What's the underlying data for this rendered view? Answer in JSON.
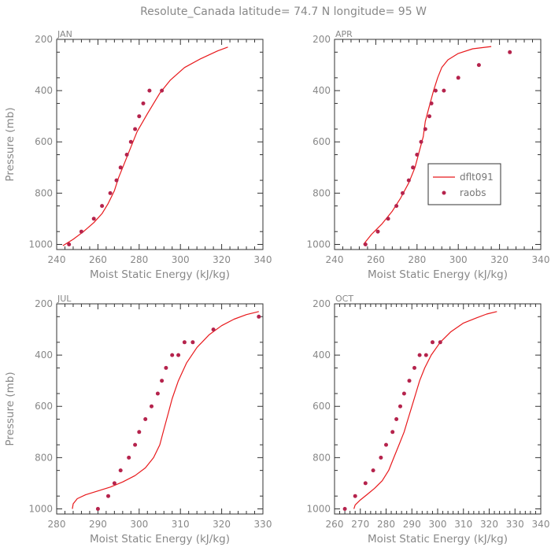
{
  "figure": {
    "title": "Resolute_Canada  latitude= 74.7 N longitude= 95 W",
    "colors": {
      "model": "#e8191c",
      "obs": "#b5234c",
      "axis": "#333333",
      "text": "#888888"
    },
    "legend": {
      "placement": "inside APR panel, lower right",
      "model": "dflt091",
      "obs": "raobs"
    }
  },
  "chart_data": [
    {
      "panel": "JAN",
      "type": "line",
      "xlabel": "Moist Static Energy (kJ/kg)",
      "ylabel": "Pressure (mb)",
      "xlim": [
        240,
        340
      ],
      "ylim": [
        1020,
        200
      ],
      "xticks": [
        240,
        260,
        280,
        300,
        320,
        340
      ],
      "yticks": [
        200,
        400,
        600,
        800,
        1000
      ],
      "series": [
        {
          "name": "dflt091",
          "kind": "line",
          "x": [
            243,
            248,
            253,
            258,
            262,
            265,
            268,
            270,
            273,
            276,
            279,
            284,
            290,
            295,
            302,
            310,
            318,
            323
          ],
          "y": [
            1005,
            980,
            950,
            915,
            880,
            840,
            790,
            740,
            680,
            620,
            560,
            490,
            410,
            360,
            310,
            275,
            245,
            230
          ]
        },
        {
          "name": "raobs",
          "kind": "scatter",
          "x": [
            246,
            252,
            258,
            262,
            266,
            269,
            271,
            274,
            276,
            278,
            280,
            282,
            285,
            291
          ],
          "y": [
            1000,
            950,
            900,
            850,
            800,
            750,
            700,
            650,
            600,
            550,
            500,
            450,
            400,
            400
          ]
        }
      ]
    },
    {
      "panel": "APR",
      "type": "line",
      "xlabel": "Moist Static Energy (kJ/kg)",
      "ylabel": "",
      "xlim": [
        240,
        340
      ],
      "ylim": [
        1020,
        200
      ],
      "xticks": [
        240,
        260,
        280,
        300,
        320,
        340
      ],
      "yticks": [
        200,
        400,
        600,
        800,
        1000
      ],
      "series": [
        {
          "name": "dflt091",
          "kind": "line",
          "x": [
            254,
            258,
            263,
            268,
            272,
            276,
            279,
            281,
            283,
            284,
            286,
            288,
            290,
            292,
            295,
            300,
            307,
            316
          ],
          "y": [
            1000,
            960,
            920,
            870,
            820,
            760,
            700,
            640,
            580,
            520,
            460,
            400,
            350,
            310,
            280,
            255,
            237,
            228
          ]
        },
        {
          "name": "raobs",
          "kind": "scatter",
          "x": [
            255,
            261,
            266,
            270,
            273,
            276,
            278,
            280,
            282,
            284,
            286,
            287,
            289,
            293,
            300,
            310,
            325
          ],
          "y": [
            1000,
            950,
            900,
            850,
            800,
            750,
            700,
            650,
            600,
            550,
            500,
            450,
            400,
            400,
            350,
            300,
            250
          ]
        }
      ]
    },
    {
      "panel": "JUL",
      "type": "line",
      "xlabel": "Moist Static Energy (kJ/kg)",
      "ylabel": "Pressure (mb)",
      "xlim": [
        280,
        330
      ],
      "ylim": [
        1020,
        200
      ],
      "xticks": [
        280,
        290,
        300,
        310,
        320,
        330
      ],
      "yticks": [
        200,
        400,
        600,
        800,
        1000
      ],
      "series": [
        {
          "name": "dflt091",
          "kind": "line",
          "x": [
            283.8,
            284,
            285,
            287,
            290,
            293,
            296,
            299,
            301.5,
            303.5,
            305,
            306,
            307,
            308,
            309.5,
            311.5,
            314,
            317,
            320,
            323,
            326,
            329
          ],
          "y": [
            1000,
            980,
            960,
            945,
            930,
            915,
            895,
            870,
            840,
            800,
            750,
            690,
            630,
            570,
            500,
            430,
            370,
            320,
            285,
            260,
            242,
            230
          ]
        },
        {
          "name": "raobs",
          "kind": "scatter",
          "x": [
            290,
            292.5,
            294,
            295.5,
            297.5,
            299,
            300,
            301.5,
            303,
            304.5,
            305.5,
            306.5,
            308,
            309.5,
            311,
            313,
            318,
            329
          ],
          "y": [
            1000,
            950,
            900,
            850,
            800,
            750,
            700,
            650,
            600,
            550,
            500,
            450,
            400,
            400,
            350,
            350,
            300,
            250
          ]
        }
      ]
    },
    {
      "panel": "OCT",
      "type": "line",
      "xlabel": "Moist Static Energy (kJ/kg)",
      "ylabel": "",
      "xlim": [
        260,
        340
      ],
      "ylim": [
        1020,
        200
      ],
      "xticks": [
        260,
        270,
        280,
        290,
        300,
        310,
        320,
        330,
        340
      ],
      "yticks": [
        200,
        400,
        600,
        800,
        1000
      ],
      "series": [
        {
          "name": "dflt091",
          "kind": "line",
          "x": [
            267.5,
            268,
            270,
            272.5,
            275.5,
            278.5,
            281,
            283,
            285,
            287,
            288.5,
            290,
            291.5,
            293,
            295,
            297.5,
            301,
            305,
            310,
            315,
            319,
            323
          ],
          "y": [
            1000,
            985,
            965,
            945,
            920,
            890,
            850,
            800,
            750,
            700,
            650,
            600,
            550,
            500,
            450,
            400,
            350,
            310,
            275,
            255,
            240,
            230
          ]
        },
        {
          "name": "raobs",
          "kind": "scatter",
          "x": [
            264,
            268,
            272,
            275,
            278,
            280,
            282.5,
            284,
            285.5,
            287,
            289,
            291,
            293,
            295.5,
            298,
            301
          ],
          "y": [
            1000,
            950,
            900,
            850,
            800,
            750,
            700,
            650,
            600,
            550,
            500,
            450,
            400,
            400,
            350,
            350
          ]
        }
      ]
    }
  ]
}
